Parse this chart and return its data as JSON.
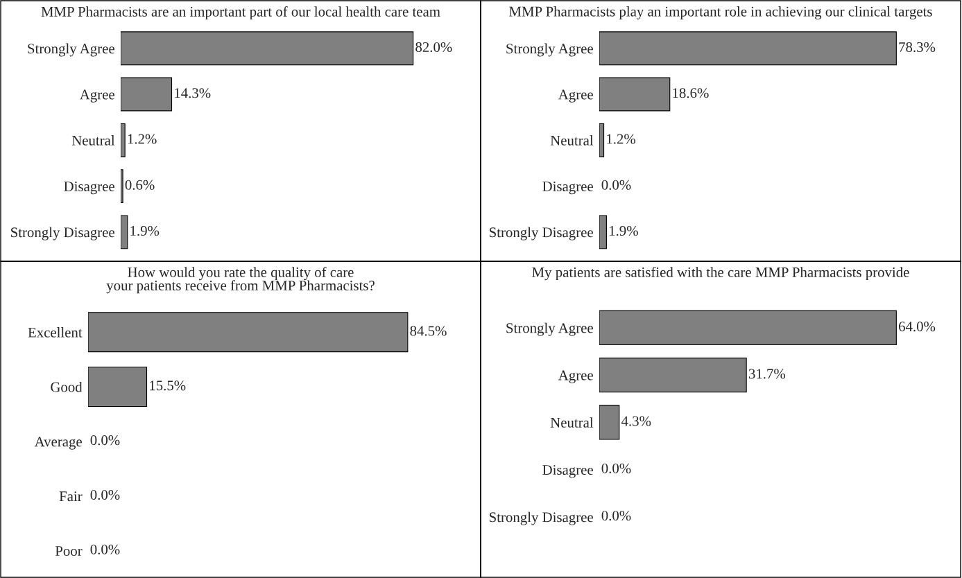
{
  "chart_data": [
    {
      "type": "bar",
      "orientation": "horizontal",
      "title": "MMP Pharmacists are an important part of our local health care team",
      "categories": [
        "Strongly Agree",
        "Agree",
        "Neutral",
        "Disagree",
        "Strongly Disagree"
      ],
      "values": [
        82.0,
        14.3,
        1.2,
        0.6,
        1.9
      ],
      "value_labels": [
        "82.0%",
        "14.3%",
        "1.2%",
        "0.6%",
        "1.9%"
      ],
      "color": "#808080"
    },
    {
      "type": "bar",
      "orientation": "horizontal",
      "title": "MMP Pharmacists play an important role in achieving our clinical targets",
      "categories": [
        "Strongly Agree",
        "Agree",
        "Neutral",
        "Disagree",
        "Strongly Disagree"
      ],
      "values": [
        78.3,
        18.6,
        1.2,
        0.0,
        1.9
      ],
      "value_labels": [
        "78.3%",
        "18.6%",
        "1.2%",
        "0.0%",
        "1.9%"
      ],
      "color": "#808080"
    },
    {
      "type": "bar",
      "orientation": "horizontal",
      "title": "How would you rate the quality of care\nyour patients receive from MMP Pharmacists?",
      "categories": [
        "Excellent",
        "Good",
        "Average",
        "Fair",
        "Poor"
      ],
      "values": [
        84.5,
        15.5,
        0.0,
        0.0,
        0.0
      ],
      "value_labels": [
        "84.5%",
        "15.5%",
        "0.0%",
        "0.0%",
        "0.0%"
      ],
      "color": "#808080"
    },
    {
      "type": "bar",
      "orientation": "horizontal",
      "title": "My patients are satisfied with the care MMP Pharmacists provide",
      "categories": [
        "Strongly Agree",
        "Agree",
        "Neutral",
        "Disagree",
        "Strongly Disagree"
      ],
      "values": [
        64.0,
        31.7,
        4.3,
        0.0,
        0.0
      ],
      "value_labels": [
        "64.0%",
        "31.7%",
        "4.3%",
        "0.0%",
        "0.0%"
      ],
      "color": "#808080"
    }
  ]
}
